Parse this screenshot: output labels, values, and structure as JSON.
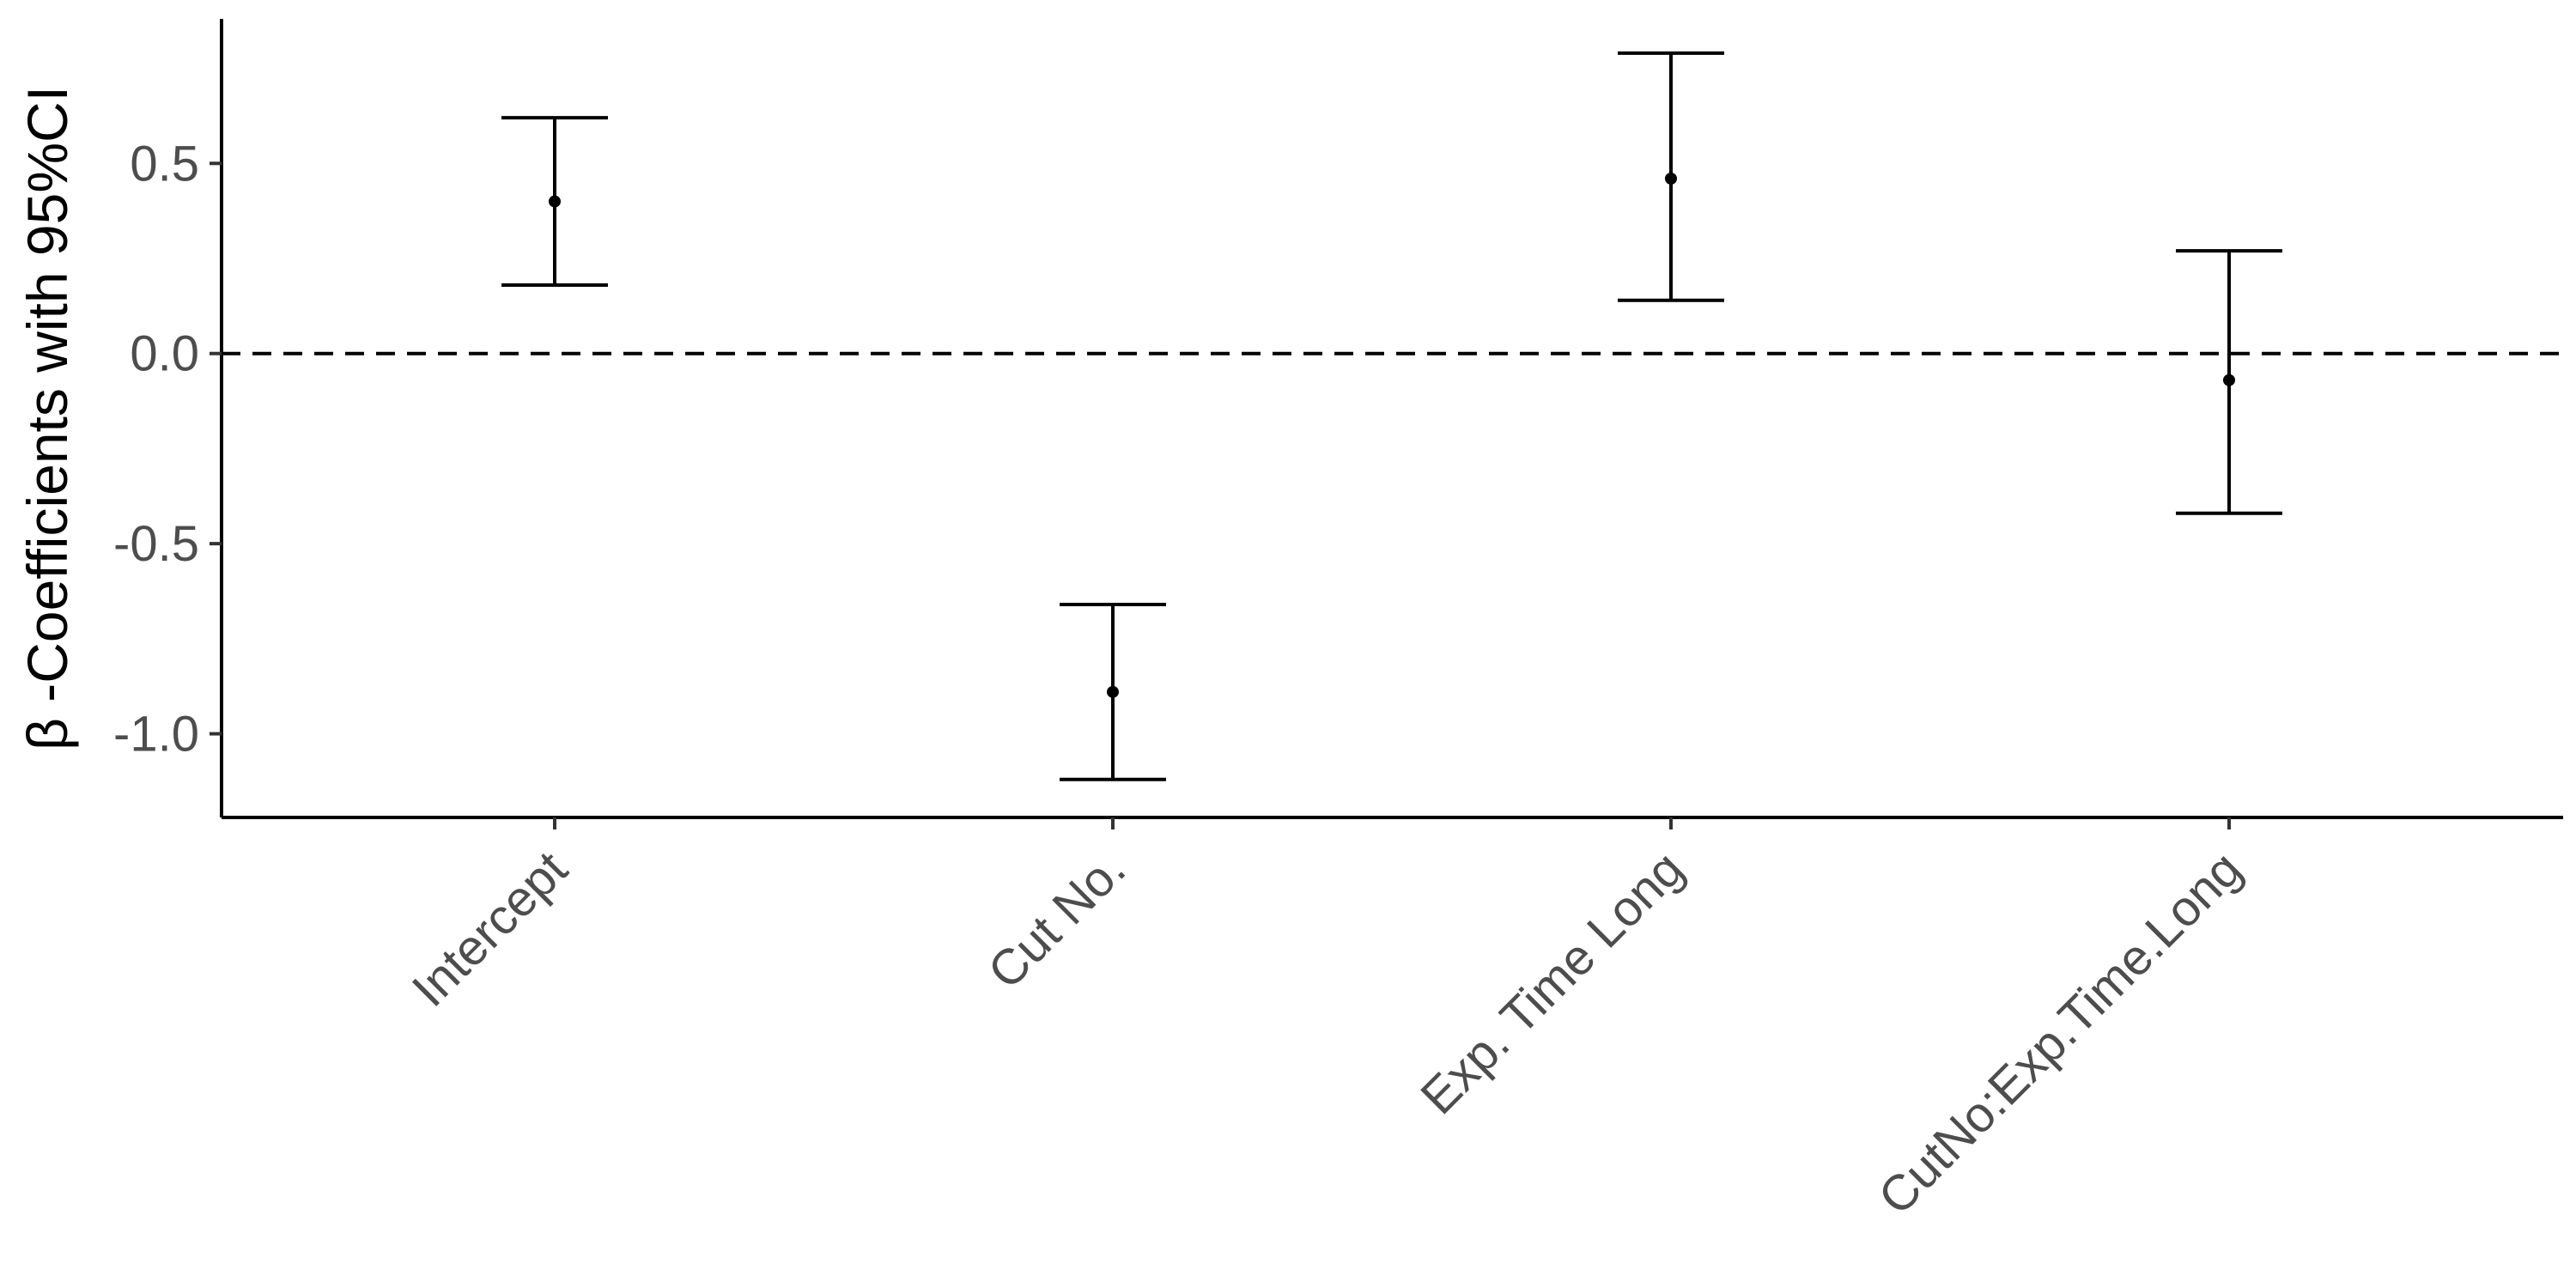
{
  "chart_data": {
    "type": "errorbar",
    "title": "",
    "xlabel": "",
    "ylabel": "β  -Coefficients with 95%CI",
    "categories": [
      "Intercept",
      "Cut No.",
      "Exp. Time Long",
      "CutNo:Exp.Time.Long"
    ],
    "estimate": [
      0.4,
      -0.89,
      0.46,
      -0.07
    ],
    "ci_lower": [
      0.18,
      -1.12,
      0.14,
      -0.42
    ],
    "ci_upper": [
      0.62,
      -0.66,
      0.79,
      0.27
    ],
    "reference_line": 0,
    "ylim": [
      -1.22,
      0.88
    ],
    "yticks": [
      -1.0,
      -0.5,
      0.0,
      0.5
    ],
    "ytick_labels": [
      "-1.0",
      "-0.5",
      "0.0",
      "0.5"
    ],
    "grid": false,
    "legend": "none"
  }
}
